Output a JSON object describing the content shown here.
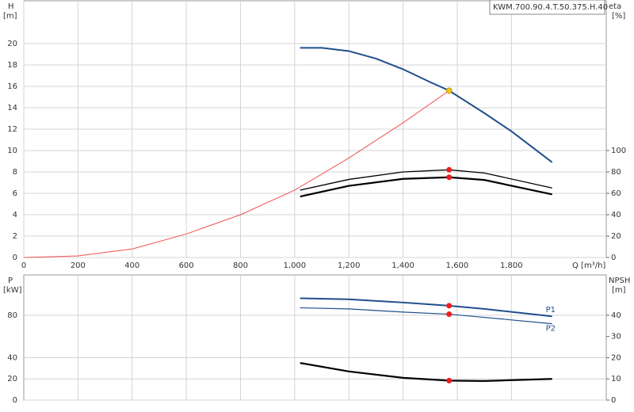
{
  "chart_data": [
    {
      "type": "line",
      "model": "KWM.700.90.4.T.50.375.H.40",
      "ylabel": "H",
      "yunit": "[m]",
      "y2label": "eta",
      "y2unit": "[%]",
      "xlabel": "Q [m³/h]",
      "xlim": [
        0,
        2150
      ],
      "ylim": [
        0,
        24
      ],
      "y2lim": [
        0,
        240
      ],
      "xticks": [
        0,
        200,
        400,
        600,
        800,
        {
          "value": 1000,
          "label": "1,000"
        },
        {
          "value": 1200,
          "label": "1,200"
        },
        {
          "value": 1400,
          "label": "1,400"
        },
        {
          "value": 1600,
          "label": "1,600"
        },
        {
          "value": 1800,
          "label": "1,800"
        }
      ],
      "yticks": [
        0,
        2,
        4,
        6,
        8,
        10,
        12,
        14,
        16,
        18,
        20
      ],
      "y2ticks": [
        0,
        20,
        40,
        60,
        80,
        100
      ],
      "grid": true,
      "series": [
        {
          "color": "#1f4e8c",
          "width": 2,
          "axis": "y",
          "x": [
            1020,
            1100,
            1200,
            1300,
            1400,
            1500,
            1570,
            1700,
            1800,
            1950
          ],
          "values": [
            19.6,
            19.6,
            19.3,
            18.6,
            17.6,
            16.4,
            15.6,
            13.5,
            11.8,
            8.9
          ]
        },
        {
          "color": "#f05050",
          "width": 1,
          "axis": "y",
          "x": [
            0,
            200,
            400,
            600,
            800,
            1000,
            1200,
            1400,
            1570
          ],
          "values": [
            0,
            0.15,
            0.8,
            2.2,
            4.0,
            6.3,
            9.3,
            12.6,
            15.6
          ]
        },
        {
          "color": "#000000",
          "width": 1.3,
          "axis": "y2",
          "x": [
            1020,
            1200,
            1400,
            1570,
            1700,
            1950
          ],
          "values": [
            63,
            73,
            80,
            82,
            79,
            65
          ]
        },
        {
          "color": "#000000",
          "width": 2.2,
          "axis": "y2",
          "x": [
            1020,
            1200,
            1400,
            1570,
            1700,
            1950
          ],
          "values": [
            57,
            67,
            73.5,
            75,
            72.5,
            59
          ]
        }
      ],
      "points": [
        {
          "color": "#f5c518",
          "axis": "y",
          "x": 1570,
          "value": 15.6
        },
        {
          "color": "#ee1c1c",
          "axis": "y2",
          "x": 1570,
          "value": 82
        },
        {
          "color": "#ee1c1c",
          "axis": "y2",
          "x": 1570,
          "value": 75
        }
      ]
    },
    {
      "type": "line",
      "ylabel": "P",
      "yunit": "[kW]",
      "y2label": "NPSH",
      "y2unit": "[m]",
      "xlim": [
        0,
        2150
      ],
      "ylim": [
        0,
        118
      ],
      "y2lim": [
        0,
        59
      ],
      "xticks": [
        200,
        400,
        600,
        800,
        1000,
        1200,
        1400,
        1600,
        1800
      ],
      "yticks": [
        0,
        20,
        40,
        80
      ],
      "y2ticks": [
        0,
        10,
        20,
        30,
        40
      ],
      "grid": true,
      "series": [
        {
          "name": "P1",
          "color": "#1f4e8c",
          "width": 2,
          "axis": "y",
          "x": [
            1020,
            1200,
            1400,
            1570,
            1700,
            1950
          ],
          "values": [
            96,
            95,
            92,
            89,
            86,
            79
          ]
        },
        {
          "name": "P2",
          "color": "#1f4e8c",
          "width": 1.2,
          "axis": "y",
          "x": [
            1020,
            1200,
            1400,
            1570,
            1700,
            1950
          ],
          "values": [
            87,
            86,
            83,
            81,
            78,
            72
          ]
        },
        {
          "color": "#000000",
          "width": 2.2,
          "axis": "y2",
          "x": [
            1020,
            1200,
            1400,
            1570,
            1700,
            1950
          ],
          "values": [
            17.5,
            13.5,
            10.5,
            9.2,
            9,
            10
          ]
        }
      ],
      "points": [
        {
          "color": "#ee1c1c",
          "axis": "y",
          "x": 1570,
          "value": 89
        },
        {
          "color": "#ee1c1c",
          "axis": "y",
          "x": 1570,
          "value": 81
        },
        {
          "color": "#ee1c1c",
          "axis": "y2",
          "x": 1570,
          "value": 9.2
        }
      ]
    }
  ]
}
